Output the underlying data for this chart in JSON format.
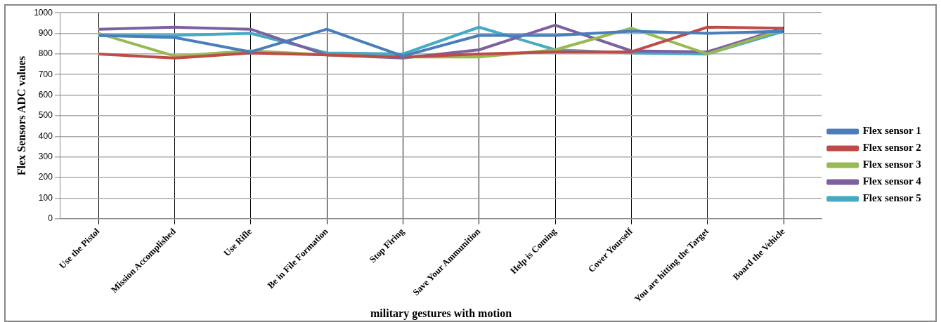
{
  "chart_data": {
    "type": "line",
    "xlabel": "military gestures with motion",
    "ylabel": "Flex Sensors ADC values",
    "categories": [
      "Use the Pistol",
      "Mission Accomplished",
      "Use Rifle",
      "Be in File Formation",
      "Stop Firing",
      "Save Your Ammunition",
      "Help is Coming",
      "Cover Yourself",
      "You are hitting the Target",
      "Board the Vehicle"
    ],
    "series": [
      {
        "name": "Flex sensor 1",
        "color": "#4a7ebb",
        "values": [
          890,
          880,
          810,
          920,
          790,
          890,
          890,
          910,
          900,
          910
        ]
      },
      {
        "name": "Flex sensor 2",
        "color": "#be4b48",
        "values": [
          800,
          780,
          805,
          795,
          785,
          800,
          810,
          810,
          930,
          925
        ]
      },
      {
        "name": "Flex sensor 3",
        "color": "#98b954",
        "values": [
          900,
          790,
          815,
          795,
          785,
          785,
          820,
          925,
          800,
          920
        ]
      },
      {
        "name": "Flex sensor 4",
        "color": "#7d60a0",
        "values": [
          920,
          930,
          920,
          795,
          780,
          820,
          940,
          815,
          810,
          925
        ]
      },
      {
        "name": "Flex sensor 5",
        "color": "#46aac5",
        "values": [
          890,
          890,
          900,
          805,
          800,
          930,
          820,
          805,
          800,
          910
        ]
      }
    ],
    "ylim": [
      0,
      1000
    ],
    "yticks": [
      0,
      100,
      200,
      300,
      400,
      500,
      600,
      700,
      800,
      900,
      1000
    ],
    "grid": true,
    "legend": "right",
    "marker": "none",
    "line_style": "solid"
  }
}
